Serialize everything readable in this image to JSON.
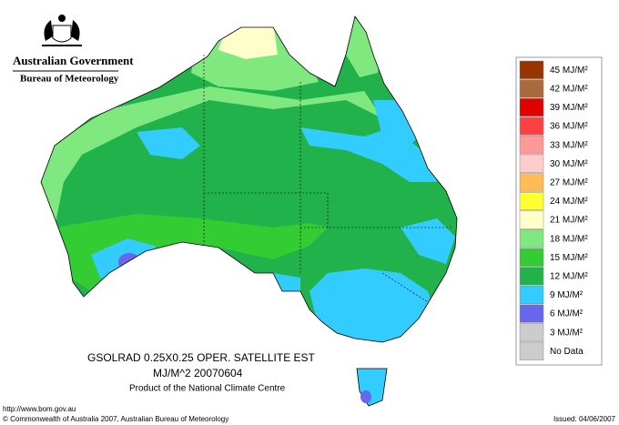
{
  "header": {
    "government": "Australian Government",
    "agency": "Bureau of Meteorology"
  },
  "legend": {
    "items": [
      {
        "label": "45 MJ/M²",
        "color": "#993300"
      },
      {
        "label": "42 MJ/M²",
        "color": "#a86b3c"
      },
      {
        "label": "39 MJ/M²",
        "color": "#e00000"
      },
      {
        "label": "36 MJ/M²",
        "color": "#ff4040"
      },
      {
        "label": "33 MJ/M²",
        "color": "#ff9999"
      },
      {
        "label": "30 MJ/M²",
        "color": "#ffcccc"
      },
      {
        "label": "27 MJ/M²",
        "color": "#ffbb55"
      },
      {
        "label": "24 MJ/M²",
        "color": "#ffff33"
      },
      {
        "label": "21 MJ/M²",
        "color": "#ffffcc"
      },
      {
        "label": "18 MJ/M²",
        "color": "#7fe87f"
      },
      {
        "label": "15 MJ/M²",
        "color": "#33cc33"
      },
      {
        "label": "12 MJ/M²",
        "color": "#22b24c"
      },
      {
        "label": "9 MJ/M²",
        "color": "#33ccff"
      },
      {
        "label": "6 MJ/M²",
        "color": "#6666ee"
      },
      {
        "label": "3 MJ/M²",
        "color": "#cccccc"
      },
      {
        "label": "No Data",
        "color": "#cccccc"
      }
    ]
  },
  "caption": {
    "line1": "GSOLRAD    0.25X0.25 OPER. SATELLITE EST",
    "line2": "MJ/M^2   20070604",
    "line3": "Product of the National Climate Centre"
  },
  "footer": {
    "url": "http://www.bom.gov.au",
    "copyright": "© Commonwealth of Australia 2007, Australian Bureau of Meteorology",
    "issued": "Issued: 04/06/2007"
  }
}
